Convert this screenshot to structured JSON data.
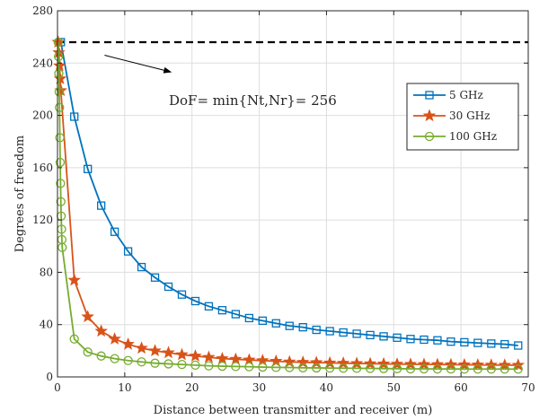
{
  "chart_data": {
    "type": "line",
    "xlabel": "Distance between transmitter and receiver (m)",
    "ylabel": "Degrees of freedom",
    "xlim": [
      0,
      70
    ],
    "ylim": [
      0,
      280
    ],
    "xticks": [
      0,
      10,
      20,
      30,
      40,
      50,
      60,
      70
    ],
    "yticks": [
      0,
      40,
      80,
      120,
      160,
      200,
      240,
      280
    ],
    "grid": true,
    "legend_position": "top-right",
    "reference_line": {
      "y": 256,
      "style": "dashed",
      "color": "#000000"
    },
    "annotation": {
      "text": "DoF= min{Nt,Nr}= 256",
      "arrow_from": [
        7,
        246
      ],
      "arrow_to": [
        17,
        233
      ]
    },
    "series": [
      {
        "name": "5 GHz",
        "color": "#0072BD",
        "marker": "square",
        "x": [
          0.5,
          2.5,
          4.5,
          6.5,
          8.5,
          10.5,
          12.5,
          14.5,
          16.5,
          18.5,
          20.5,
          22.5,
          24.5,
          26.5,
          28.5,
          30.5,
          32.5,
          34.5,
          36.5,
          38.5,
          40.5,
          42.5,
          44.5,
          46.5,
          48.5,
          50.5,
          52.5,
          54.5,
          56.5,
          58.5,
          60.5,
          62.5,
          64.5,
          66.5,
          68.5
        ],
        "y": [
          256,
          199,
          159,
          131,
          111,
          96,
          84,
          76,
          69,
          63,
          58,
          54,
          51,
          48,
          45,
          43,
          41,
          39,
          38,
          36,
          35,
          34,
          33,
          32,
          31,
          30,
          29,
          28.5,
          28,
          27,
          26.5,
          26,
          25.5,
          25,
          24
        ]
      },
      {
        "name": "30 GHz",
        "color": "#D95319",
        "marker": "star",
        "x": [
          0.1,
          0.2,
          0.3,
          0.4,
          0.5,
          2.5,
          4.5,
          6.5,
          8.5,
          10.5,
          12.5,
          14.5,
          16.5,
          18.5,
          20.5,
          22.5,
          24.5,
          26.5,
          28.5,
          30.5,
          32.5,
          34.5,
          36.5,
          38.5,
          40.5,
          42.5,
          44.5,
          46.5,
          48.5,
          50.5,
          52.5,
          54.5,
          56.5,
          58.5,
          60.5,
          62.5,
          64.5,
          66.5,
          68.5
        ],
        "y": [
          256,
          248,
          238,
          228,
          219,
          74,
          46,
          35,
          29,
          25,
          22,
          20,
          18.5,
          17,
          16,
          15,
          14,
          13.5,
          13,
          12.5,
          12,
          11.5,
          11.2,
          11,
          10.7,
          10.5,
          10.3,
          10.1,
          10,
          9.8,
          9.7,
          9.6,
          9.5,
          9.4,
          9.3,
          9.2,
          9.1,
          9,
          9
        ]
      },
      {
        "name": "100 GHz",
        "color": "#77AC30",
        "marker": "circle",
        "x": [
          0.1,
          0.15,
          0.2,
          0.25,
          0.3,
          0.35,
          0.4,
          0.45,
          0.5,
          0.55,
          0.6,
          0.65,
          0.7,
          2.5,
          4.5,
          6.5,
          8.5,
          10.5,
          12.5,
          14.5,
          16.5,
          18.5,
          20.5,
          22.5,
          24.5,
          26.5,
          28.5,
          30.5,
          32.5,
          34.5,
          36.5,
          38.5,
          40.5,
          42.5,
          44.5,
          46.5,
          48.5,
          50.5,
          52.5,
          54.5,
          56.5,
          58.5,
          60.5,
          62.5,
          64.5,
          66.5,
          68.5
        ],
        "y": [
          256,
          245,
          232,
          218,
          206,
          183,
          164,
          148,
          134,
          123,
          113,
          105,
          99,
          29,
          19,
          16,
          14,
          12.5,
          11.5,
          10.5,
          10,
          9.5,
          9,
          8.5,
          8.2,
          8,
          7.8,
          7.5,
          7.3,
          7.2,
          7,
          6.9,
          6.8,
          6.7,
          6.6,
          6.5,
          6.4,
          6.3,
          6.2,
          6.2,
          6.1,
          6.1,
          6,
          6,
          6,
          6,
          6
        ]
      }
    ]
  }
}
